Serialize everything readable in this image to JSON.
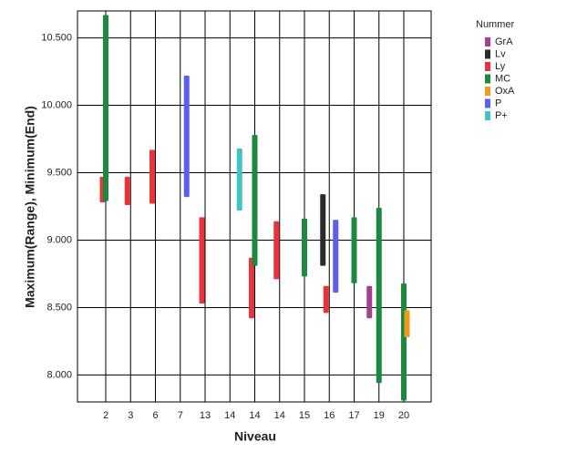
{
  "chart_data": {
    "type": "range-bar",
    "x_label": "Niveau",
    "y_label": "Maximum(Range), Minimum(End)",
    "categories": [
      "2",
      "3",
      "6",
      "7",
      "13",
      "14",
      "14",
      "14",
      "15",
      "16",
      "17",
      "19",
      "20"
    ],
    "ylim": [
      7800,
      10700
    ],
    "yticks": [
      {
        "value": 8000,
        "label": "8.000"
      },
      {
        "value": 8500,
        "label": "8.500"
      },
      {
        "value": 9000,
        "label": "9.000"
      },
      {
        "value": 9500,
        "label": "9.500"
      },
      {
        "value": 10000,
        "label": "10.000"
      },
      {
        "value": 10500,
        "label": "10.500"
      }
    ],
    "grid": true,
    "legend_title": "Nummer",
    "legend_position": "right",
    "series": [
      {
        "name": "GrA",
        "color": "#a3408f",
        "low": [
          null,
          null,
          null,
          null,
          null,
          null,
          null,
          null,
          null,
          null,
          null,
          8420,
          null
        ],
        "high": [
          null,
          null,
          null,
          null,
          null,
          null,
          null,
          null,
          null,
          null,
          null,
          8660,
          null
        ]
      },
      {
        "name": "Lv",
        "color": "#2b2b2b",
        "low": [
          null,
          null,
          null,
          null,
          null,
          null,
          null,
          null,
          null,
          8810,
          null,
          null,
          null
        ],
        "high": [
          null,
          null,
          null,
          null,
          null,
          null,
          null,
          null,
          null,
          9340,
          null,
          null,
          null
        ]
      },
      {
        "name": "Ly",
        "color": "#e8333a",
        "low": [
          9280,
          9260,
          9270,
          null,
          8530,
          null,
          8420,
          8710,
          null,
          8460,
          null,
          null,
          null
        ],
        "high": [
          9470,
          9470,
          9670,
          null,
          9170,
          null,
          8870,
          9140,
          null,
          8660,
          null,
          null,
          null
        ]
      },
      {
        "name": "MC",
        "color": "#1b8a3f",
        "low": [
          9290,
          null,
          null,
          null,
          null,
          null,
          8810,
          null,
          8730,
          null,
          8680,
          7940,
          7810
        ],
        "high": [
          10670,
          null,
          null,
          null,
          null,
          null,
          9780,
          null,
          9160,
          null,
          9170,
          9240,
          8680
        ]
      },
      {
        "name": "OxA",
        "color": "#f39a1d",
        "low": [
          null,
          null,
          null,
          null,
          null,
          null,
          null,
          null,
          null,
          null,
          null,
          null,
          8280
        ],
        "high": [
          null,
          null,
          null,
          null,
          null,
          null,
          null,
          null,
          null,
          null,
          null,
          null,
          8480
        ]
      },
      {
        "name": "P",
        "color": "#5d5df0",
        "low": [
          null,
          null,
          null,
          9320,
          null,
          null,
          null,
          null,
          null,
          8610,
          null,
          null,
          null
        ],
        "high": [
          null,
          null,
          null,
          10220,
          null,
          null,
          null,
          null,
          null,
          9150,
          null,
          null,
          null
        ]
      },
      {
        "name": "P+",
        "color": "#43c4c4",
        "low": [
          null,
          null,
          null,
          null,
          null,
          9220,
          null,
          null,
          null,
          null,
          null,
          null,
          null
        ],
        "high": [
          null,
          null,
          null,
          null,
          null,
          9680,
          null,
          null,
          null,
          null,
          null,
          null,
          null
        ]
      }
    ]
  }
}
